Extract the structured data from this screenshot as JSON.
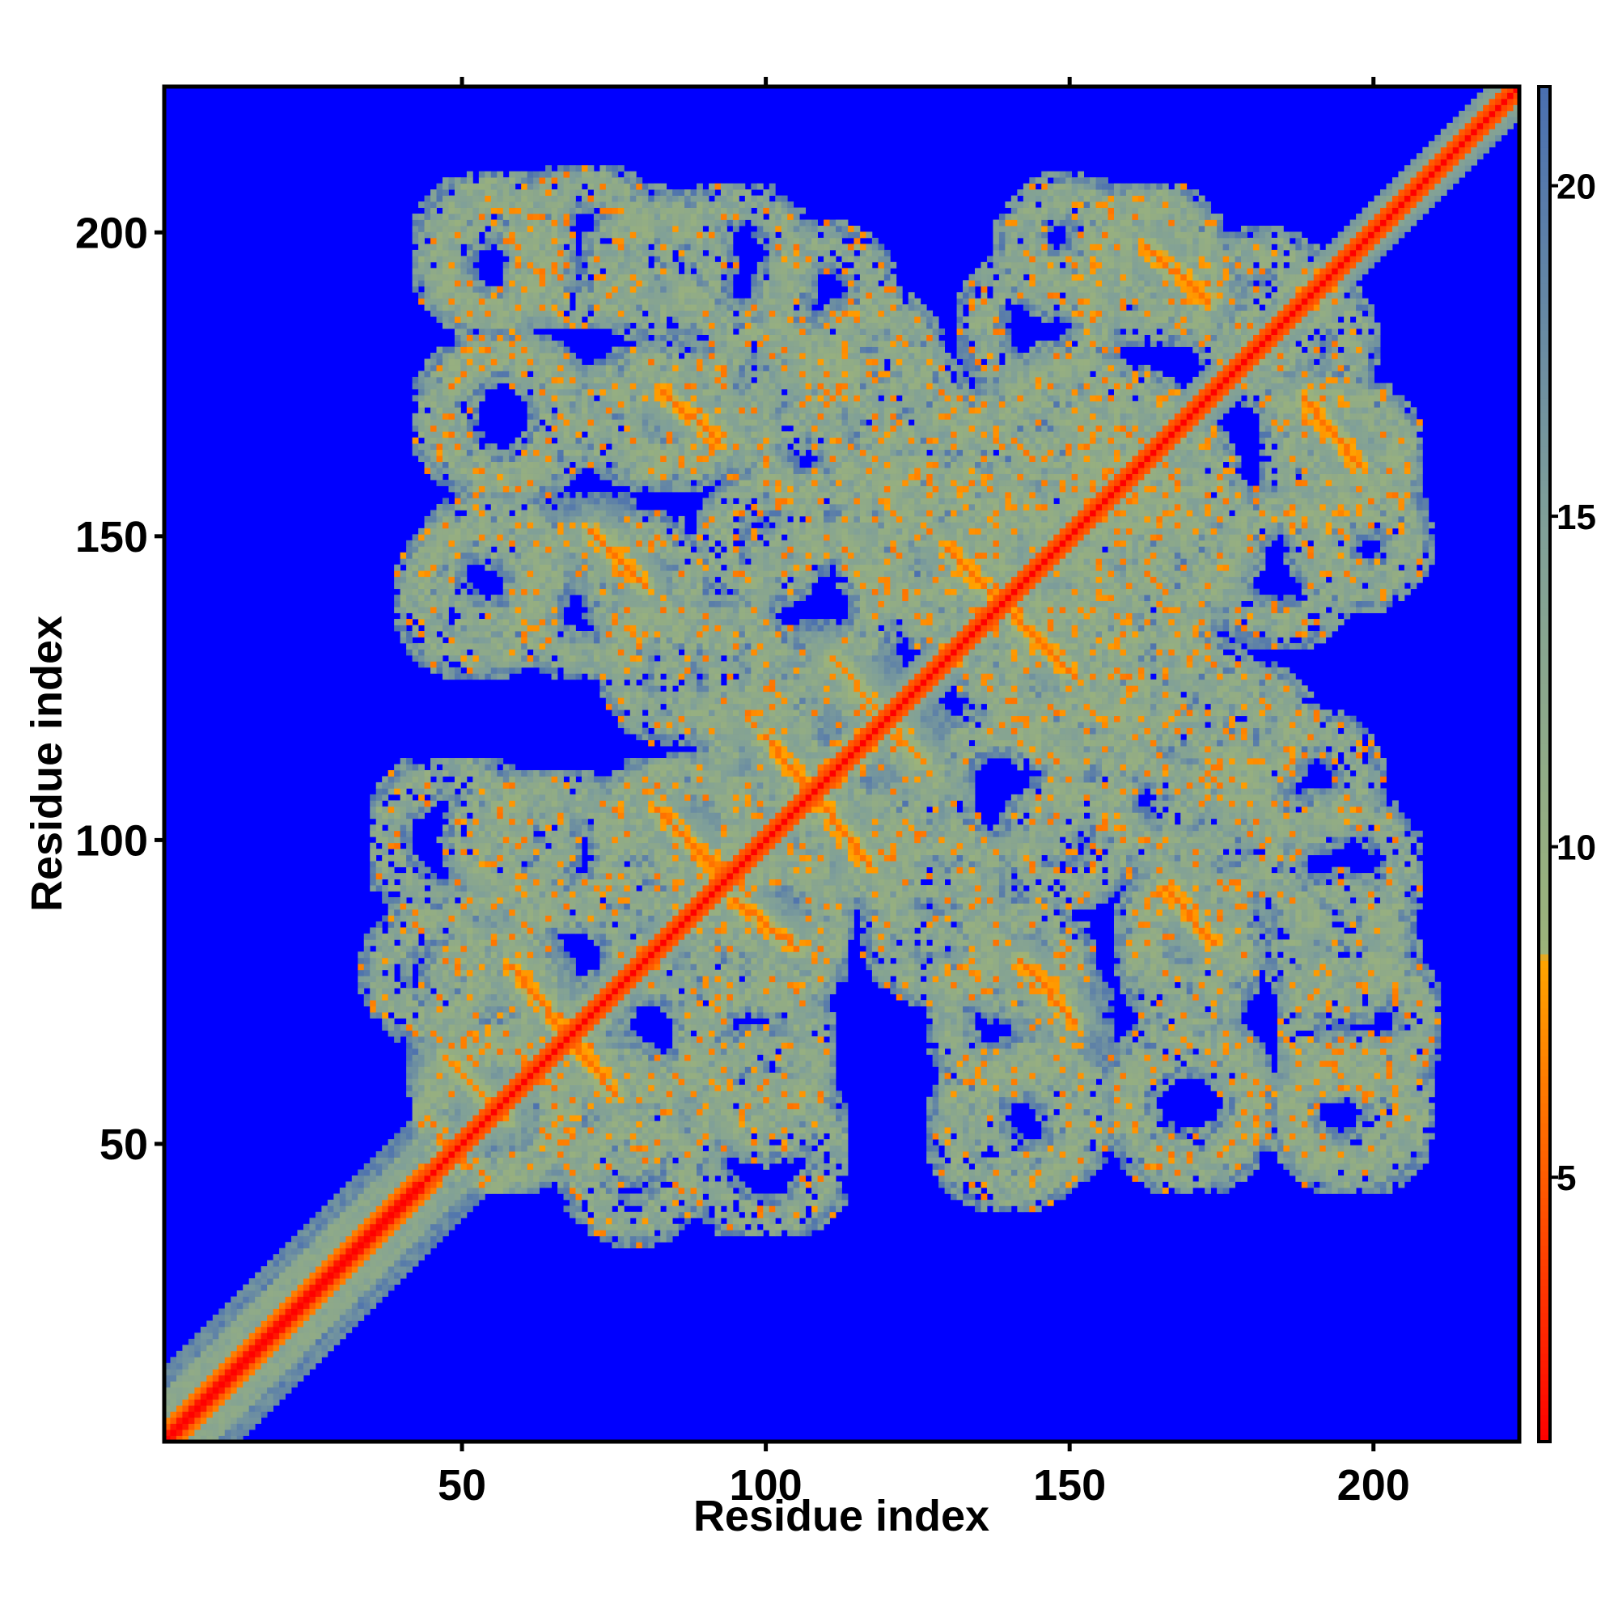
{
  "chart_data": {
    "type": "heatmap",
    "title": "",
    "xlabel": "Residue index",
    "ylabel": "Residue index",
    "xlim": [
      1,
      224
    ],
    "ylim": [
      1,
      224
    ],
    "x_ticks": [
      50,
      100,
      150,
      200
    ],
    "y_ticks": [
      50,
      100,
      150,
      200
    ],
    "x_tick_labels": [
      "50",
      "100",
      "150",
      "200"
    ],
    "y_tick_labels": [
      "50",
      "100",
      "150",
      "200"
    ],
    "n_residues": 224,
    "colorbar": {
      "range": [
        1,
        21.5
      ],
      "ticks": [
        5,
        10,
        15,
        20
      ],
      "tick_labels": [
        "5",
        "10",
        "15",
        "20"
      ],
      "color_stops": [
        {
          "value": 1,
          "color": "#ff0000"
        },
        {
          "value": 4,
          "color": "#ff4500"
        },
        {
          "value": 8.3,
          "color": "#ffa500"
        },
        {
          "value": 8.4,
          "color": "#9cb37a"
        },
        {
          "value": 15,
          "color": "#7f9f99"
        },
        {
          "value": 21.5,
          "color": "#4a6fb0"
        }
      ],
      "cutoff_color": "#0000ff"
    },
    "background_value": ">21 (blue)",
    "main_diagonal": {
      "from": 1,
      "to": 224,
      "value": 1
    },
    "contact_features": [
      {
        "kind": "helix_band",
        "start": 1,
        "end": 42,
        "width": 6
      },
      {
        "kind": "antiparallel",
        "a_start": 47,
        "a_end": 57,
        "b_start": 64,
        "b_end": 54,
        "value": 7
      },
      {
        "kind": "antiparallel",
        "a_start": 58,
        "a_end": 75,
        "b_start": 79,
        "b_end": 58,
        "value": 6
      },
      {
        "kind": "antiparallel",
        "a_start": 82,
        "a_end": 92,
        "b_start": 105,
        "b_end": 95,
        "value": 6
      },
      {
        "kind": "antiparallel",
        "a_start": 95,
        "a_end": 105,
        "b_start": 90,
        "b_end": 82,
        "value": 6
      },
      {
        "kind": "antiparallel",
        "a_start": 100,
        "a_end": 117,
        "b_start": 117,
        "b_end": 96,
        "value": 6
      },
      {
        "kind": "antiparallel",
        "a_start": 111,
        "a_end": 126,
        "b_start": 130,
        "b_end": 113,
        "value": 7
      },
      {
        "kind": "antiparallel",
        "a_start": 130,
        "a_end": 150,
        "b_start": 148,
        "b_end": 128,
        "value": 6
      },
      {
        "kind": "antiparallel",
        "a_start": 142,
        "a_end": 151,
        "b_start": 80,
        "b_end": 70,
        "value": 6
      },
      {
        "kind": "antiparallel",
        "a_start": 71,
        "a_end": 80,
        "b_start": 151,
        "b_end": 142,
        "value": 6
      },
      {
        "kind": "antiparallel",
        "a_start": 163,
        "a_end": 173,
        "b_start": 198,
        "b_end": 189,
        "value": 6
      },
      {
        "kind": "antiparallel",
        "a_start": 189,
        "a_end": 198,
        "b_start": 173,
        "b_end": 162,
        "value": 6
      },
      {
        "kind": "antiparallel",
        "a_start": 83,
        "a_end": 92,
        "b_start": 174,
        "b_end": 166,
        "value": 6
      },
      {
        "kind": "antiparallel",
        "a_start": 166,
        "a_end": 174,
        "b_start": 92,
        "b_end": 83,
        "value": 6
      }
    ],
    "contact_blobs": [
      [
        55,
        197
      ],
      [
        82,
        195
      ],
      [
        110,
        190
      ],
      [
        150,
        198
      ],
      [
        163,
        195
      ],
      [
        188,
        182
      ],
      [
        55,
        170
      ],
      [
        80,
        170
      ],
      [
        108,
        168
      ],
      [
        143,
        163
      ],
      [
        167,
        160
      ],
      [
        196,
        165
      ],
      [
        55,
        145
      ],
      [
        80,
        143
      ],
      [
        108,
        140
      ],
      [
        130,
        145
      ],
      [
        158,
        152
      ],
      [
        185,
        145
      ],
      [
        92,
        128
      ],
      [
        108,
        118
      ],
      [
        150,
        130
      ],
      [
        180,
        118
      ],
      [
        48,
        100
      ],
      [
        65,
        98
      ],
      [
        88,
        102
      ],
      [
        115,
        100
      ],
      [
        150,
        100
      ],
      [
        175,
        100
      ],
      [
        195,
        95
      ],
      [
        45,
        78
      ],
      [
        68,
        80
      ],
      [
        100,
        85
      ],
      [
        140,
        70
      ],
      [
        170,
        85
      ],
      [
        198,
        70
      ],
      [
        55,
        55
      ],
      [
        75,
        55
      ],
      [
        100,
        58
      ],
      [
        140,
        52
      ],
      [
        170,
        58
      ],
      [
        195,
        55
      ],
      [
        120,
        170
      ],
      [
        125,
        150
      ],
      [
        150,
        170
      ],
      [
        160,
        130
      ],
      [
        128,
        85
      ]
    ]
  }
}
